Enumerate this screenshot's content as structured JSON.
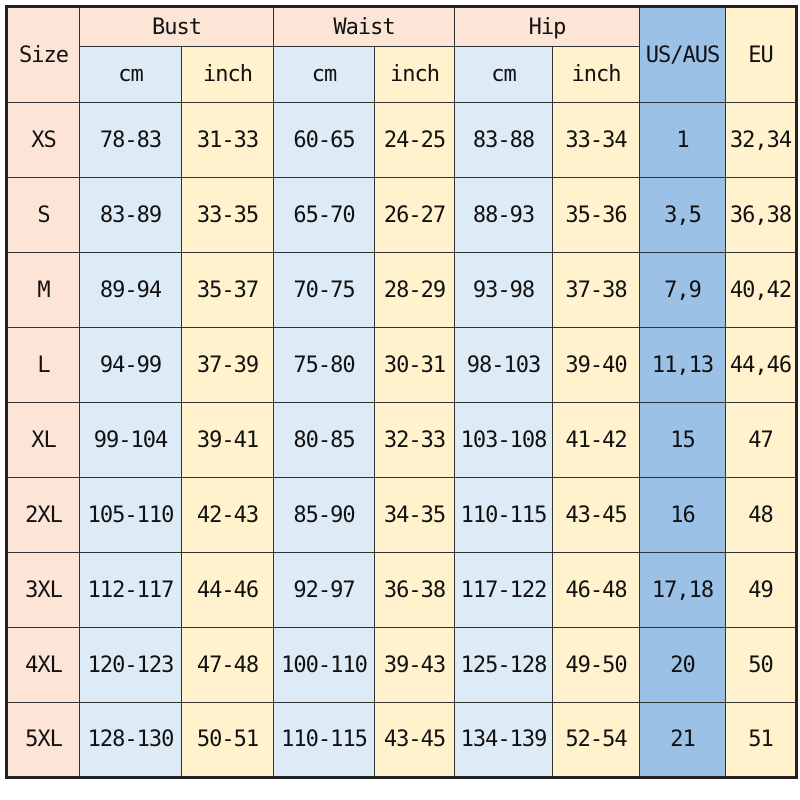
{
  "header": {
    "size": "Size",
    "groups": [
      "Bust",
      "Waist",
      "Hip"
    ],
    "us_aus": "US/AUS",
    "eu": "EU",
    "units": [
      "cm",
      "inch",
      "cm",
      "inch",
      "cm",
      "inch"
    ]
  },
  "colors": {
    "size_header": "#fce4d6",
    "cm": "#ddebf7",
    "inch": "#fff2cc",
    "us_aus": "#9bc2e6",
    "eu": "#fff2cc"
  },
  "rows": [
    [
      "XS",
      "78-83",
      "31-33",
      "60-65",
      "24-25",
      "83-88",
      "33-34",
      "1",
      "32,34"
    ],
    [
      "S",
      "83-89",
      "33-35",
      "65-70",
      "26-27",
      "88-93",
      "35-36",
      "3,5",
      "36,38"
    ],
    [
      "M",
      "89-94",
      "35-37",
      "70-75",
      "28-29",
      "93-98",
      "37-38",
      "7,9",
      "40,42"
    ],
    [
      "L",
      "94-99",
      "37-39",
      "75-80",
      "30-31",
      "98-103",
      "39-40",
      "11,13",
      "44,46"
    ],
    [
      "XL",
      "99-104",
      "39-41",
      "80-85",
      "32-33",
      "103-108",
      "41-42",
      "15",
      "47"
    ],
    [
      "2XL",
      "105-110",
      "42-43",
      "85-90",
      "34-35",
      "110-115",
      "43-45",
      "16",
      "48"
    ],
    [
      "3XL",
      "112-117",
      "44-46",
      "92-97",
      "36-38",
      "117-122",
      "46-48",
      "17,18",
      "49"
    ],
    [
      "4XL",
      "120-123",
      "47-48",
      "100-110",
      "39-43",
      "125-128",
      "49-50",
      "20",
      "50"
    ],
    [
      "5XL",
      "128-130",
      "50-51",
      "110-115",
      "43-45",
      "134-139",
      "52-54",
      "21",
      "51"
    ]
  ]
}
